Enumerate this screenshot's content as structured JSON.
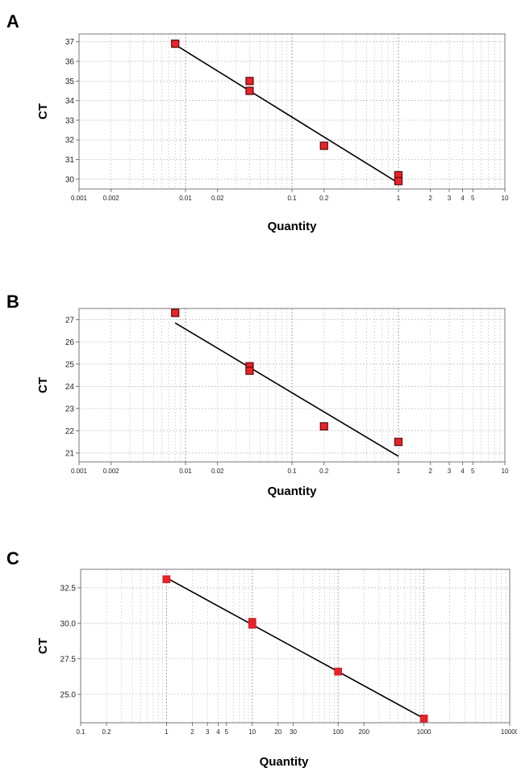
{
  "chart_data": [
    {
      "panel": "A",
      "type": "scatter",
      "xlabel": "Quantity",
      "ylabel": "CT",
      "x_scale": "log",
      "xlim": [
        0.001,
        10
      ],
      "ylim": [
        29.5,
        37.4
      ],
      "x_tick_labels": [
        "0.001",
        "0.002",
        "0.01",
        "0.02",
        "0.1",
        "0.2",
        "1",
        "2",
        "3",
        "4",
        "5",
        "10"
      ],
      "y_tick_labels": [
        "30",
        "31",
        "32",
        "33",
        "34",
        "35",
        "36",
        "37"
      ],
      "grid": true,
      "marker_color": "#e8232b",
      "line_color": "#000000",
      "points": [
        {
          "x": 0.008,
          "y": 36.9
        },
        {
          "x": 0.04,
          "y": 35.0
        },
        {
          "x": 0.04,
          "y": 34.5
        },
        {
          "x": 0.2,
          "y": 31.7
        },
        {
          "x": 1,
          "y": 30.2
        },
        {
          "x": 1,
          "y": 29.9
        }
      ],
      "fit": [
        {
          "x": 0.008,
          "y": 36.85
        },
        {
          "x": 1,
          "y": 29.8
        }
      ]
    },
    {
      "panel": "B",
      "type": "scatter",
      "xlabel": "Quantity",
      "ylabel": "CT",
      "x_scale": "log",
      "xlim": [
        0.001,
        10
      ],
      "ylim": [
        20.6,
        27.5
      ],
      "x_tick_labels": [
        "0.001",
        "0.002",
        "0.01",
        "0.02",
        "0.1",
        "0.2",
        "1",
        "2",
        "3",
        "4",
        "5",
        "10"
      ],
      "y_tick_labels": [
        "21",
        "22",
        "23",
        "24",
        "25",
        "26",
        "27"
      ],
      "grid": true,
      "marker_color": "#e8232b",
      "line_color": "#000000",
      "points": [
        {
          "x": 0.008,
          "y": 27.3
        },
        {
          "x": 0.04,
          "y": 24.9
        },
        {
          "x": 0.04,
          "y": 24.7
        },
        {
          "x": 0.2,
          "y": 22.2
        },
        {
          "x": 1,
          "y": 21.5
        }
      ],
      "fit": [
        {
          "x": 0.008,
          "y": 26.85
        },
        {
          "x": 1,
          "y": 20.85
        }
      ]
    },
    {
      "panel": "C",
      "type": "scatter",
      "xlabel": "Quantity",
      "ylabel": "CT",
      "x_scale": "log",
      "xlim": [
        0.1,
        10000
      ],
      "ylim": [
        23.0,
        33.8
      ],
      "x_tick_labels": [
        "0.1",
        "0.2",
        "1",
        "2",
        "3",
        "4",
        "5",
        "10",
        "20",
        "30",
        "100",
        "200",
        "1000",
        "10000"
      ],
      "y_tick_labels": [
        "25.0",
        "27.5",
        "30.0",
        "32.5"
      ],
      "grid": true,
      "marker_color": "#e8232b",
      "line_color": "#000000",
      "points": [
        {
          "x": 1,
          "y": 33.1
        },
        {
          "x": 10,
          "y": 30.1
        },
        {
          "x": 10,
          "y": 29.9
        },
        {
          "x": 100,
          "y": 26.6
        },
        {
          "x": 1000,
          "y": 23.3
        }
      ],
      "fit": [
        {
          "x": 1,
          "y": 33.2
        },
        {
          "x": 1000,
          "y": 23.3
        }
      ]
    }
  ]
}
